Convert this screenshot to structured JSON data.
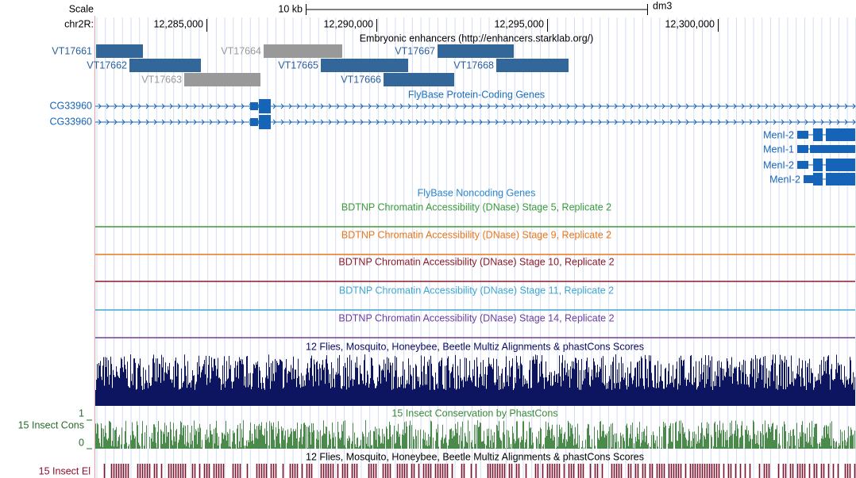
{
  "header": {
    "scale_label": "Scale",
    "scale_text": "10 kb",
    "assembly": "dm3",
    "chrom": "chr2R:",
    "positions": [
      "12,285,000",
      "12,290,000",
      "12,295,000",
      "12,300,000"
    ]
  },
  "enhancers": {
    "title": "Embryonic enhancers (http://enhancers.starklab.org/)",
    "items": [
      "VT17661",
      "VT17662",
      "VT17663",
      "VT17664",
      "VT17665",
      "VT17666",
      "VT17667",
      "VT17668"
    ]
  },
  "genes": {
    "title": "FlyBase Protein-Coding Genes",
    "left": [
      "CG33960",
      "CG33960"
    ],
    "right": [
      "MenI-2",
      "MenI-1",
      "MenI-2",
      "MenI-2"
    ]
  },
  "noncoding": {
    "title": "FlyBase Noncoding Genes"
  },
  "dnase": [
    "BDTNP Chromatin Accessibility (DNase) Stage 5, Replicate 2",
    "BDTNP Chromatin Accessibility (DNase) Stage 9, Replicate 2",
    "BDTNP Chromatin Accessibility (DNase) Stage 10, Replicate 2",
    "BDTNP Chromatin Accessibility (DNase) Stage 11, Replicate 2",
    "BDTNP Chromatin Accessibility (DNase) Stage 14, Replicate 2"
  ],
  "multiz": {
    "title": "12 Flies, Mosquito, Honeybee, Beetle Multiz Alignments & phastCons Scores"
  },
  "phastcons": {
    "title": "15 Insect Conservation by PhastCons",
    "label": "15 Insect Cons",
    "max": "1",
    "min": "0"
  },
  "elements": {
    "label": "15 Insect El",
    "title": "12 Flies, Mosquito, Honeybee, Beetle Multiz Alignments & phastCons Scores"
  }
}
